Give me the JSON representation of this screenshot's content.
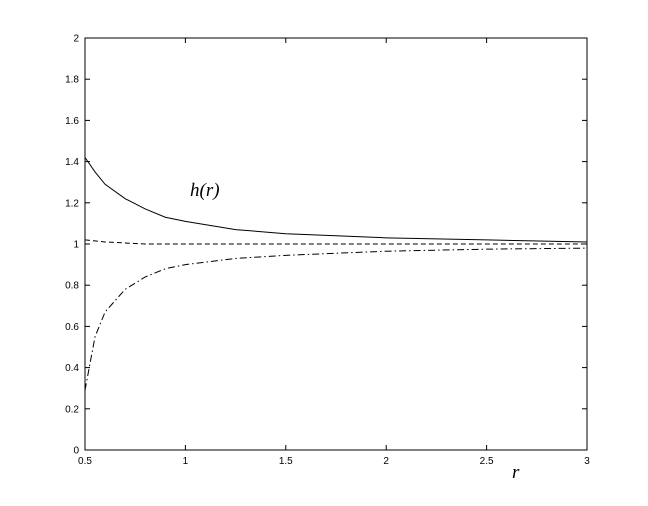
{
  "chart_data": {
    "type": "line",
    "annotation": "h(r)",
    "x_label": "r",
    "x": [
      0.5,
      0.55,
      0.6,
      0.7,
      0.8,
      0.9,
      1,
      1.25,
      1.5,
      1.75,
      2,
      2.5,
      3
    ],
    "series": [
      {
        "color": "#000000",
        "line_style": "solid",
        "values": [
          1.42,
          1.35,
          1.29,
          1.22,
          1.17,
          1.13,
          1.11,
          1.07,
          1.05,
          1.04,
          1.03,
          1.02,
          1.01
        ]
      },
      {
        "color": "#000000",
        "line_style": "dashed",
        "values": [
          1.02,
          1.015,
          1.01,
          1.005,
          1.0,
          1.0,
          1.0,
          1.0,
          1.0,
          1.0,
          1.0,
          1.0,
          1.0
        ]
      },
      {
        "color": "#000000",
        "line_style": "dashdot",
        "values": [
          0.29,
          0.55,
          0.67,
          0.78,
          0.84,
          0.88,
          0.9,
          0.93,
          0.945,
          0.955,
          0.965,
          0.975,
          0.98
        ]
      }
    ],
    "xlim": [
      0.5,
      3
    ],
    "xticks": [
      0.5,
      1,
      1.5,
      2,
      2.5,
      3
    ],
    "ylim": [
      0,
      2
    ],
    "yticks": [
      0,
      0.2,
      0.4,
      0.6,
      0.8,
      1,
      1.2,
      1.4,
      1.6,
      1.8,
      2
    ],
    "grid": false
  }
}
